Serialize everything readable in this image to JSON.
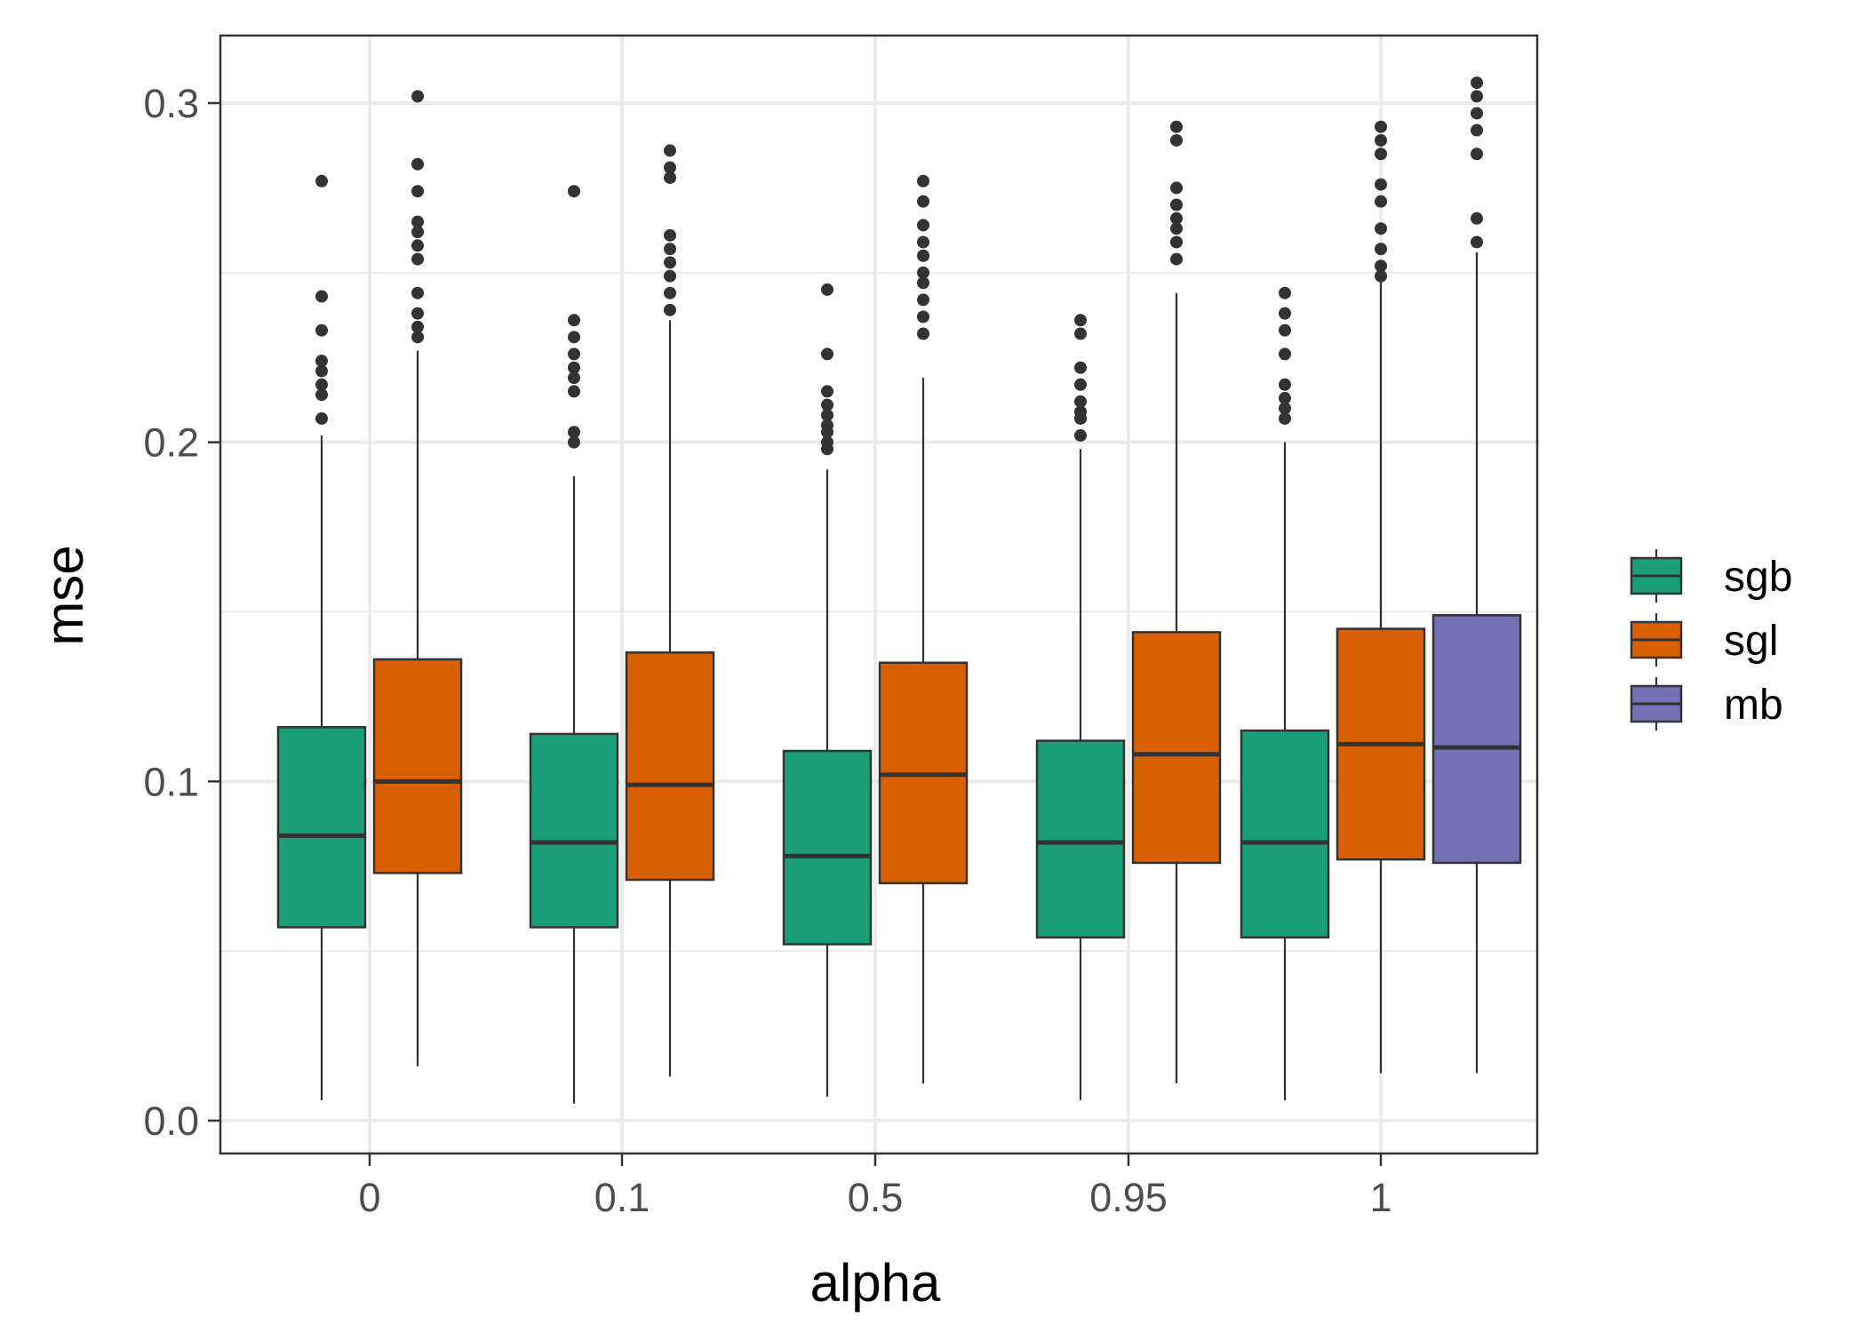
{
  "chart_data": {
    "type": "boxplot",
    "title": "",
    "xlabel": "alpha",
    "ylabel": "mse",
    "categories": [
      "0",
      "0.1",
      "0.5",
      "0.95",
      "1"
    ],
    "ylim": [
      -0.01,
      0.32
    ],
    "y_ticks": [
      0.0,
      0.1,
      0.2,
      0.3
    ],
    "y_tick_labels": [
      "0.0",
      "0.1",
      "0.2",
      "0.3"
    ],
    "grid": true,
    "legend_position": "right",
    "series": [
      {
        "name": "sgb",
        "color": "#1b9e77",
        "boxes": [
          {
            "category": "0",
            "min": 0.006,
            "q1": 0.057,
            "median": 0.084,
            "q3": 0.116,
            "max": 0.202,
            "outliers": [
              0.277,
              0.243,
              0.233,
              0.224,
              0.221,
              0.217,
              0.214,
              0.207
            ]
          },
          {
            "category": "0.1",
            "min": 0.005,
            "q1": 0.057,
            "median": 0.082,
            "q3": 0.114,
            "max": 0.19,
            "outliers": [
              0.274,
              0.236,
              0.231,
              0.226,
              0.222,
              0.219,
              0.215,
              0.203,
              0.2
            ]
          },
          {
            "category": "0.5",
            "min": 0.007,
            "q1": 0.052,
            "median": 0.078,
            "q3": 0.109,
            "max": 0.192,
            "outliers": [
              0.245,
              0.226,
              0.215,
              0.211,
              0.208,
              0.205,
              0.203,
              0.2,
              0.198
            ]
          },
          {
            "category": "0.95",
            "min": 0.006,
            "q1": 0.054,
            "median": 0.082,
            "q3": 0.112,
            "max": 0.198,
            "outliers": [
              0.236,
              0.232,
              0.222,
              0.217,
              0.212,
              0.209,
              0.207,
              0.202
            ]
          },
          {
            "category": "1",
            "min": 0.006,
            "q1": 0.054,
            "median": 0.082,
            "q3": 0.115,
            "max": 0.2,
            "outliers": [
              0.244,
              0.238,
              0.233,
              0.226,
              0.217,
              0.213,
              0.21,
              0.207
            ]
          }
        ]
      },
      {
        "name": "sgl",
        "color": "#d95f02",
        "boxes": [
          {
            "category": "0",
            "min": 0.016,
            "q1": 0.073,
            "median": 0.1,
            "q3": 0.136,
            "max": 0.227,
            "outliers": [
              0.302,
              0.282,
              0.274,
              0.265,
              0.262,
              0.258,
              0.254,
              0.244,
              0.238,
              0.234,
              0.231
            ]
          },
          {
            "category": "0.1",
            "min": 0.013,
            "q1": 0.071,
            "median": 0.099,
            "q3": 0.138,
            "max": 0.236,
            "outliers": [
              0.286,
              0.281,
              0.278,
              0.261,
              0.257,
              0.253,
              0.249,
              0.244,
              0.239
            ]
          },
          {
            "category": "0.5",
            "min": 0.011,
            "q1": 0.07,
            "median": 0.102,
            "q3": 0.135,
            "max": 0.219,
            "outliers": [
              0.277,
              0.271,
              0.264,
              0.259,
              0.255,
              0.25,
              0.247,
              0.242,
              0.237,
              0.232
            ]
          },
          {
            "category": "0.95",
            "min": 0.011,
            "q1": 0.076,
            "median": 0.108,
            "q3": 0.144,
            "max": 0.244,
            "outliers": [
              0.293,
              0.289,
              0.275,
              0.27,
              0.266,
              0.263,
              0.259,
              0.254
            ]
          },
          {
            "category": "1",
            "min": 0.014,
            "q1": 0.077,
            "median": 0.111,
            "q3": 0.145,
            "max": 0.248,
            "outliers": [
              0.293,
              0.289,
              0.285,
              0.276,
              0.271,
              0.263,
              0.257,
              0.252,
              0.249
            ]
          }
        ]
      },
      {
        "name": "mb",
        "color": "#7570b3",
        "boxes": [
          {
            "category": "1",
            "min": 0.014,
            "q1": 0.076,
            "median": 0.11,
            "q3": 0.149,
            "max": 0.256,
            "outliers": [
              0.306,
              0.302,
              0.297,
              0.292,
              0.285,
              0.266,
              0.259
            ]
          }
        ]
      }
    ]
  }
}
